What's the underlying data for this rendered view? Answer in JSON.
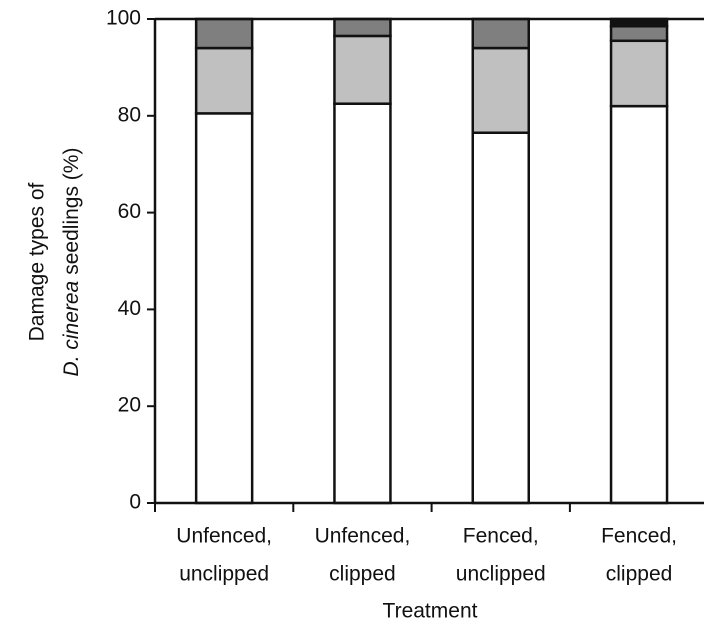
{
  "chart_data": {
    "type": "stacked-bar",
    "categories": [
      [
        "Unfenced,",
        "unclipped"
      ],
      [
        "Unfenced,",
        "clipped"
      ],
      [
        "Fenced,",
        "unclipped"
      ],
      [
        "Fenced,",
        "clipped"
      ]
    ],
    "series": [
      {
        "color": "#ffffff",
        "values": [
          80.5,
          82.5,
          76.5,
          82
        ]
      },
      {
        "color": "#c0c0c0",
        "values": [
          13.5,
          14,
          17.5,
          13.5
        ]
      },
      {
        "color": "#7f7f7f",
        "values": [
          6,
          3.5,
          6,
          3
        ]
      },
      {
        "color": "#111111",
        "values": [
          0,
          0,
          0,
          1.5
        ]
      }
    ],
    "ylim": [
      0,
      100
    ],
    "yticks": [
      0,
      20,
      40,
      60,
      80,
      100
    ],
    "xlabel": "Treatment",
    "ylabel": {
      "line1": "Damage types of",
      "italic": "D. cinerea",
      "rest": "seedlings (%)"
    }
  }
}
